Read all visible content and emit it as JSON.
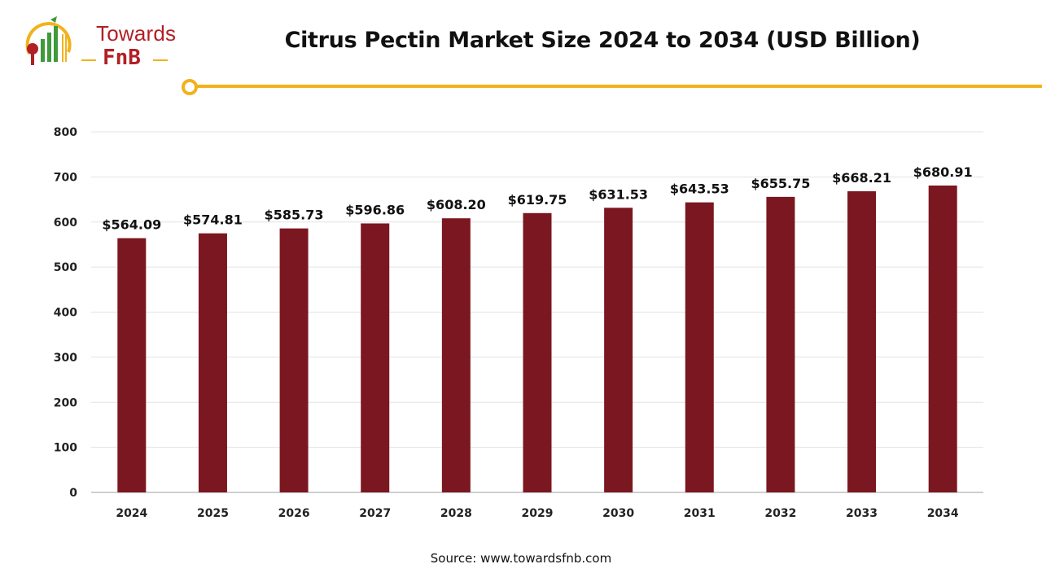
{
  "brand": {
    "name_line1": "Towards",
    "name_line2": "FnB"
  },
  "header": {
    "title": "Citrus Pectin Market Size 2024 to 2034 (USD Billion)"
  },
  "footer": {
    "source": "Source: www.towardsfnb.com"
  },
  "colors": {
    "bar": "#7b1720",
    "accent": "#f2b21b",
    "brand_red": "#b21f24",
    "brand_green": "#3e9a3a"
  },
  "chart_data": {
    "type": "bar",
    "categories": [
      "2024",
      "2025",
      "2026",
      "2027",
      "2028",
      "2029",
      "2030",
      "2031",
      "2032",
      "2033",
      "2034"
    ],
    "values": [
      564.09,
      574.81,
      585.73,
      596.86,
      608.2,
      619.75,
      631.53,
      643.53,
      655.75,
      668.21,
      680.91
    ],
    "data_labels": [
      "$564.09",
      "$574.81",
      "$585.73",
      "$596.86",
      "$608.20",
      "$619.75",
      "$631.53",
      "$643.53",
      "$655.75",
      "$668.21",
      "$680.91"
    ],
    "title": "Citrus Pectin Market Size 2024 to 2034 (USD Billion)",
    "xlabel": "",
    "ylabel": "",
    "ylim": [
      0,
      800
    ],
    "yticks": [
      0,
      100,
      200,
      300,
      400,
      500,
      600,
      700,
      800
    ],
    "grid": true,
    "legend": "none"
  }
}
